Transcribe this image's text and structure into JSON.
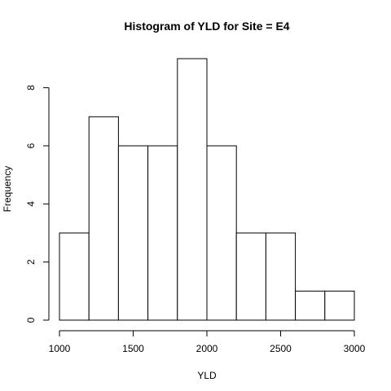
{
  "chart_data": {
    "type": "bar",
    "title": "Histogram of YLD for Site = E4",
    "xlabel": "YLD",
    "ylabel": "Frequency",
    "bins": [
      {
        "start": 1000,
        "end": 1200,
        "count": 3
      },
      {
        "start": 1200,
        "end": 1400,
        "count": 7
      },
      {
        "start": 1400,
        "end": 1600,
        "count": 6
      },
      {
        "start": 1600,
        "end": 1800,
        "count": 6
      },
      {
        "start": 1800,
        "end": 2000,
        "count": 9
      },
      {
        "start": 2000,
        "end": 2200,
        "count": 6
      },
      {
        "start": 2200,
        "end": 2400,
        "count": 3
      },
      {
        "start": 2400,
        "end": 2600,
        "count": 3
      },
      {
        "start": 2600,
        "end": 2800,
        "count": 1
      },
      {
        "start": 2800,
        "end": 3000,
        "count": 1
      }
    ],
    "xticks": [
      1000,
      1500,
      2000,
      2500,
      3000
    ],
    "xtick_labels": [
      "1000",
      "1500",
      "2000",
      "2500",
      "3000"
    ],
    "yticks": [
      0,
      2,
      4,
      6,
      8
    ],
    "ytick_labels": [
      "0",
      "2",
      "4",
      "6",
      "8"
    ],
    "xlim": [
      1000,
      3000
    ],
    "ylim": [
      0,
      9
    ],
    "grid": false,
    "bar_fill": "#ffffff",
    "bar_stroke": "#000000"
  }
}
